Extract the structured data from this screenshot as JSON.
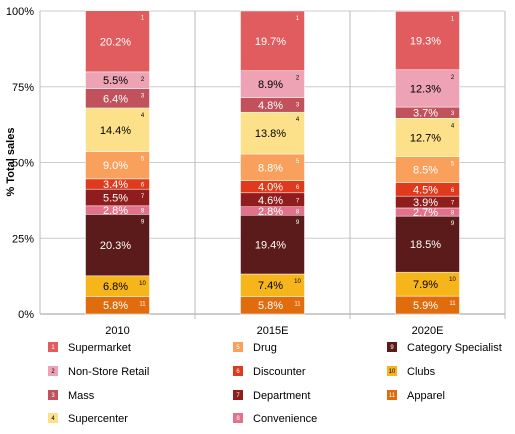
{
  "chart_data": {
    "type": "bar",
    "stacked": true,
    "ylabel": "% Total sales",
    "ylim": [
      0,
      100
    ],
    "yticks": [
      "0%",
      "25%",
      "50%",
      "75%",
      "100%"
    ],
    "grid": true,
    "categories": [
      "2010",
      "2015E",
      "2020E"
    ],
    "series": [
      {
        "name": "Apparel",
        "num": "11",
        "color": "#e06c0d",
        "values": [
          5.8,
          5.8,
          5.9
        ],
        "labels": [
          "5.8%",
          "5.8%",
          "5.9%"
        ]
      },
      {
        "name": "Clubs",
        "num": "10",
        "color": "#f7b51c",
        "values": [
          6.8,
          7.4,
          7.9
        ],
        "labels": [
          "6.8%",
          "7.4%",
          "7.9%"
        ]
      },
      {
        "name": "Category Specialist",
        "num": "9",
        "color": "#5c1b1b",
        "values": [
          20.3,
          19.4,
          18.5
        ],
        "labels": [
          "20.3%",
          "19.4%",
          "18.5%"
        ]
      },
      {
        "name": "Convenience",
        "num": "8",
        "color": "#e2718b",
        "values": [
          2.8,
          2.8,
          2.7
        ],
        "labels": [
          "2.8%",
          "2.8%",
          "2.7%"
        ]
      },
      {
        "name": "Department",
        "num": "7",
        "color": "#8f1d1d",
        "values": [
          5.5,
          4.6,
          3.9
        ],
        "labels": [
          "5.5%",
          "4.6%",
          "3.9%"
        ]
      },
      {
        "name": "Discounter",
        "num": "6",
        "color": "#e03a1d",
        "values": [
          3.4,
          4.0,
          4.5
        ],
        "labels": [
          "3.4%",
          "4.0%",
          "4.5%"
        ]
      },
      {
        "name": "Drug",
        "num": "5",
        "color": "#f8a05c",
        "values": [
          9.0,
          8.8,
          8.5
        ],
        "labels": [
          "9.0%",
          "8.8%",
          "8.5%"
        ]
      },
      {
        "name": "Supercenter",
        "num": "4",
        "color": "#fde08a",
        "values": [
          14.4,
          13.8,
          12.7
        ],
        "labels": [
          "14.4%",
          "13.8%",
          "12.7%"
        ]
      },
      {
        "name": "Mass",
        "num": "3",
        "color": "#c1525b",
        "values": [
          6.4,
          4.8,
          3.7
        ],
        "labels": [
          "6.4%",
          "4.8%",
          "3.7%"
        ]
      },
      {
        "name": "Non-Store Retail",
        "num": "2",
        "color": "#eda3b4",
        "values": [
          5.5,
          8.9,
          12.3
        ],
        "labels": [
          "5.5%",
          "8.9%",
          "12.3%"
        ]
      },
      {
        "name": "Supermarket",
        "num": "1",
        "color": "#e05c5e",
        "values": [
          20.2,
          19.7,
          19.3
        ],
        "labels": [
          "20.2%",
          "19.7%",
          "19.3%"
        ]
      }
    ],
    "legend": {
      "placement": "bottom",
      "columns": [
        [
          "Supermarket",
          "Non-Store Retail",
          "Mass",
          "Supercenter"
        ],
        [
          "Drug",
          "Discounter",
          "Department",
          "Convenience"
        ],
        [
          "Category Specialist",
          "Clubs",
          "Apparel"
        ]
      ]
    },
    "dark_text_series": [
      "Non-Store Retail",
      "Supercenter",
      "Clubs"
    ]
  }
}
